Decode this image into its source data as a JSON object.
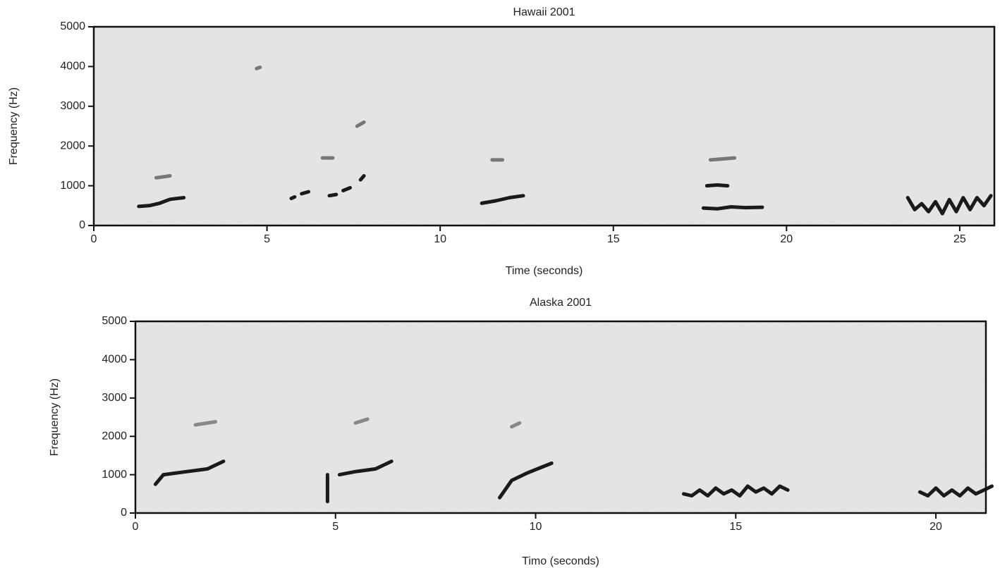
{
  "chart_data": [
    {
      "type": "line",
      "title": "Hawaii 2001",
      "x_label": "Time (seconds)",
      "y_label": "Frequency (Hz)",
      "xlim": [
        0,
        26
      ],
      "ylim": [
        0,
        5000
      ],
      "xticks": [
        0,
        5,
        10,
        15,
        20,
        25
      ],
      "yticks": [
        0,
        1000,
        2000,
        3000,
        4000,
        5000
      ],
      "series": [
        {
          "color": "#1a1a1a",
          "x": [
            1.3,
            1.6,
            1.9,
            2.2,
            2.6
          ],
          "values": [
            480,
            500,
            560,
            660,
            700
          ]
        },
        {
          "color": "#1a1a1a",
          "x": [
            5.7,
            5.8,
            null,
            6.0,
            6.2,
            null,
            6.8,
            7.0,
            null,
            7.2,
            7.4,
            null,
            7.7,
            7.8
          ],
          "values": [
            680,
            720,
            null,
            800,
            850,
            null,
            750,
            780,
            null,
            880,
            950,
            null,
            1150,
            1250
          ]
        },
        {
          "color": "#1a1a1a",
          "x": [
            11.2,
            11.6,
            12.0,
            12.4
          ],
          "values": [
            560,
            620,
            700,
            750
          ]
        },
        {
          "color": "#1a1a1a",
          "x": [
            17.6,
            18.0,
            18.4,
            18.8,
            19.3
          ],
          "values": [
            440,
            420,
            470,
            450,
            460
          ]
        },
        {
          "color": "#1a1a1a",
          "x": [
            17.7,
            18.0,
            18.3
          ],
          "values": [
            1000,
            1020,
            1000
          ]
        },
        {
          "color": "#1a1a1a",
          "x": [
            23.5,
            23.7,
            23.9,
            24.1,
            24.3,
            24.5,
            24.7,
            24.9,
            25.1,
            25.3,
            25.5,
            25.7,
            25.9
          ],
          "values": [
            700,
            400,
            550,
            350,
            600,
            300,
            650,
            350,
            700,
            400,
            700,
            500,
            750
          ]
        },
        {
          "color": "#777777",
          "x": [
            1.8,
            2.2,
            null,
            4.7,
            4.8,
            null,
            6.6,
            6.9,
            null,
            7.6,
            7.8,
            null,
            11.5,
            11.8,
            null,
            17.8,
            18.5
          ],
          "values": [
            1200,
            1250,
            null,
            3950,
            3980,
            null,
            1700,
            1700,
            null,
            2500,
            2600,
            null,
            1650,
            1650,
            null,
            1650,
            1700
          ]
        }
      ]
    },
    {
      "type": "line",
      "title": "Alaska 2001",
      "x_label": "Timo (seconds)",
      "y_label": "Frequency (Hz)",
      "xlim": [
        0,
        21.25
      ],
      "ylim": [
        0,
        5000
      ],
      "xticks": [
        0,
        5,
        10,
        15,
        20
      ],
      "yticks": [
        0,
        1000,
        2000,
        3000,
        4000,
        5000
      ],
      "series": [
        {
          "color": "#1a1a1a",
          "x": [
            0.5,
            0.7,
            1.2,
            1.8,
            2.2
          ],
          "values": [
            750,
            1000,
            1070,
            1150,
            1350
          ]
        },
        {
          "color": "#1a1a1a",
          "x": [
            4.8,
            4.8
          ],
          "values": [
            300,
            1000
          ]
        },
        {
          "color": "#1a1a1a",
          "x": [
            5.1,
            5.5,
            6.0,
            6.4
          ],
          "values": [
            1000,
            1080,
            1150,
            1350
          ]
        },
        {
          "color": "#1a1a1a",
          "x": [
            9.1,
            9.4,
            9.8,
            10.4
          ],
          "values": [
            400,
            850,
            1050,
            1300
          ]
        },
        {
          "color": "#1a1a1a",
          "x": [
            13.7,
            13.9,
            14.1,
            14.3,
            14.5,
            14.7,
            14.9,
            15.1,
            15.3,
            15.5,
            15.7,
            15.9,
            16.1,
            16.3
          ],
          "values": [
            500,
            450,
            600,
            450,
            650,
            500,
            600,
            450,
            700,
            550,
            650,
            500,
            700,
            600
          ]
        },
        {
          "color": "#1a1a1a",
          "x": [
            19.6,
            19.8,
            20.0,
            20.2,
            20.4,
            20.6,
            20.8,
            21.0,
            21.2,
            21.4
          ],
          "values": [
            550,
            450,
            650,
            450,
            600,
            450,
            650,
            500,
            600,
            700
          ]
        },
        {
          "color": "#888888",
          "x": [
            1.5,
            2.0,
            null,
            5.5,
            5.8,
            null,
            9.4,
            9.6
          ],
          "values": [
            2300,
            2380,
            null,
            2350,
            2450,
            null,
            2250,
            2350
          ]
        }
      ]
    }
  ]
}
